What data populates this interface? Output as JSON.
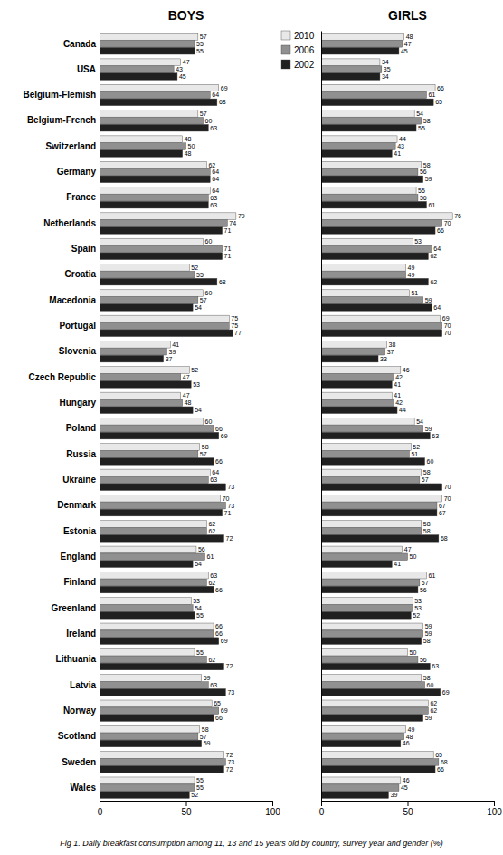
{
  "chart_data": [
    {
      "type": "bar",
      "orientation": "horizontal",
      "title": "BOYS",
      "categories": [
        "Canada",
        "USA",
        "Belgium-Flemish",
        "Belgium-French",
        "Switzerland",
        "Germany",
        "France",
        "Netherlands",
        "Spain",
        "Croatia",
        "Macedonia",
        "Portugal",
        "Slovenia",
        "Czech Republic",
        "Hungary",
        "Poland",
        "Russia",
        "Ukraine",
        "Denmark",
        "Estonia",
        "England",
        "Finland",
        "Greenland",
        "Ireland",
        "Lithuania",
        "Latvia",
        "Norway",
        "Scotland",
        "Sweden",
        "Wales"
      ],
      "series": [
        {
          "name": "2010",
          "color": "#e8e8e8",
          "values": [
            57,
            47,
            69,
            57,
            48,
            62,
            64,
            79,
            60,
            52,
            60,
            75,
            41,
            52,
            47,
            60,
            58,
            64,
            70,
            62,
            56,
            63,
            53,
            66,
            55,
            59,
            65,
            58,
            72,
            55
          ]
        },
        {
          "name": "2006",
          "color": "#909090",
          "values": [
            55,
            43,
            64,
            60,
            50,
            64,
            63,
            74,
            71,
            55,
            57,
            75,
            39,
            47,
            48,
            66,
            57,
            63,
            73,
            62,
            61,
            62,
            54,
            66,
            62,
            63,
            69,
            57,
            73,
            55
          ]
        },
        {
          "name": "2002",
          "color": "#202020",
          "values": [
            55,
            45,
            68,
            63,
            48,
            64,
            63,
            71,
            71,
            68,
            54,
            77,
            37,
            53,
            54,
            69,
            66,
            73,
            71,
            72,
            54,
            66,
            55,
            69,
            72,
            73,
            66,
            59,
            72,
            52
          ]
        }
      ],
      "xlim": [
        0,
        100
      ],
      "xticks": [
        0,
        50,
        100
      ],
      "data_labels": true,
      "grid": false,
      "annotations": [
        "Fig 1. Daily breakfast consumption among 11, 13 and 15 years old by country, survey year and gender (%)"
      ]
    },
    {
      "type": "bar",
      "orientation": "horizontal",
      "title": "GIRLS",
      "categories": [
        "Canada",
        "USA",
        "Belgium-Flemish",
        "Belgium-French",
        "Switzerland",
        "Germany",
        "France",
        "Netherlands",
        "Spain",
        "Croatia",
        "Macedonia",
        "Portugal",
        "Slovenia",
        "Czech Republic",
        "Hungary",
        "Poland",
        "Russia",
        "Ukraine",
        "Denmark",
        "Estonia",
        "England",
        "Finland",
        "Greenland",
        "Ireland",
        "Lithuania",
        "Latvia",
        "Norway",
        "Scotland",
        "Sweden",
        "Wales"
      ],
      "series": [
        {
          "name": "2010",
          "color": "#e8e8e8",
          "values": [
            48,
            34,
            66,
            54,
            44,
            58,
            55,
            76,
            53,
            49,
            51,
            69,
            38,
            46,
            41,
            54,
            52,
            58,
            70,
            58,
            47,
            61,
            53,
            59,
            50,
            58,
            62,
            49,
            65,
            46
          ]
        },
        {
          "name": "2006",
          "color": "#909090",
          "values": [
            47,
            35,
            61,
            58,
            43,
            56,
            56,
            70,
            64,
            49,
            59,
            70,
            37,
            42,
            42,
            59,
            51,
            57,
            67,
            58,
            50,
            57,
            53,
            59,
            56,
            60,
            62,
            48,
            68,
            45
          ]
        },
        {
          "name": "2002",
          "color": "#202020",
          "values": [
            45,
            34,
            65,
            55,
            41,
            59,
            61,
            66,
            62,
            62,
            64,
            70,
            33,
            41,
            44,
            63,
            60,
            70,
            67,
            68,
            41,
            56,
            52,
            58,
            63,
            69,
            59,
            46,
            66,
            39
          ]
        }
      ],
      "xlim": [
        0,
        100
      ],
      "xticks": [
        0,
        50,
        100
      ],
      "data_labels": true,
      "grid": false,
      "tick_labels": "x"
    }
  ]
}
